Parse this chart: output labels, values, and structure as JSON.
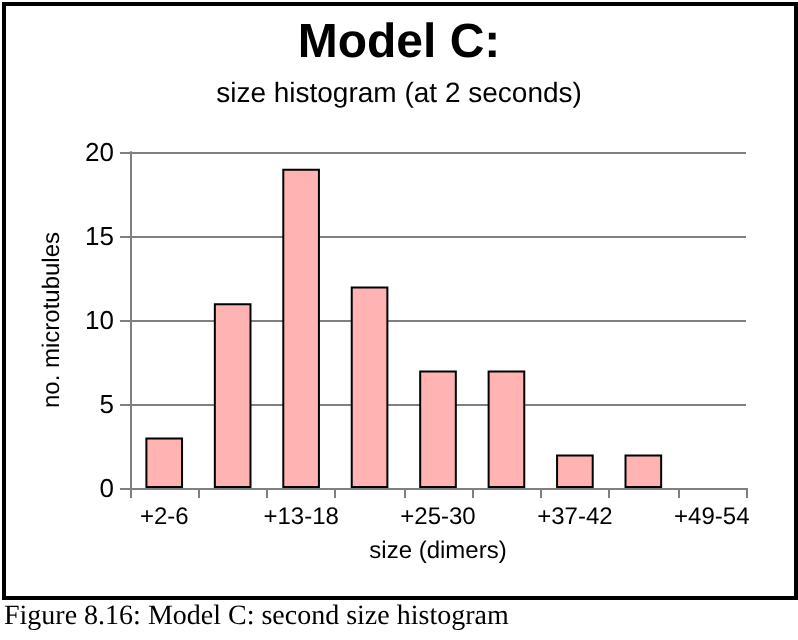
{
  "chart_data": {
    "type": "bar",
    "title": "Model C:",
    "subtitle": "size histogram (at 2 seconds)",
    "xlabel": "size (dimers)",
    "ylabel": "no. microtubules",
    "categories": [
      "+2-6",
      null,
      "+13-18",
      null,
      "+25-30",
      null,
      "+37-42",
      null,
      "+49-54"
    ],
    "values": [
      3,
      11,
      19,
      12,
      7,
      7,
      2,
      2,
      0
    ],
    "color": "#ffb3b3",
    "ylim": [
      0,
      20
    ],
    "yticks": [
      0,
      5,
      10,
      15,
      20
    ],
    "grid": "y",
    "annotations": [
      "Figure 8.16: Model C: second size histogram"
    ]
  }
}
